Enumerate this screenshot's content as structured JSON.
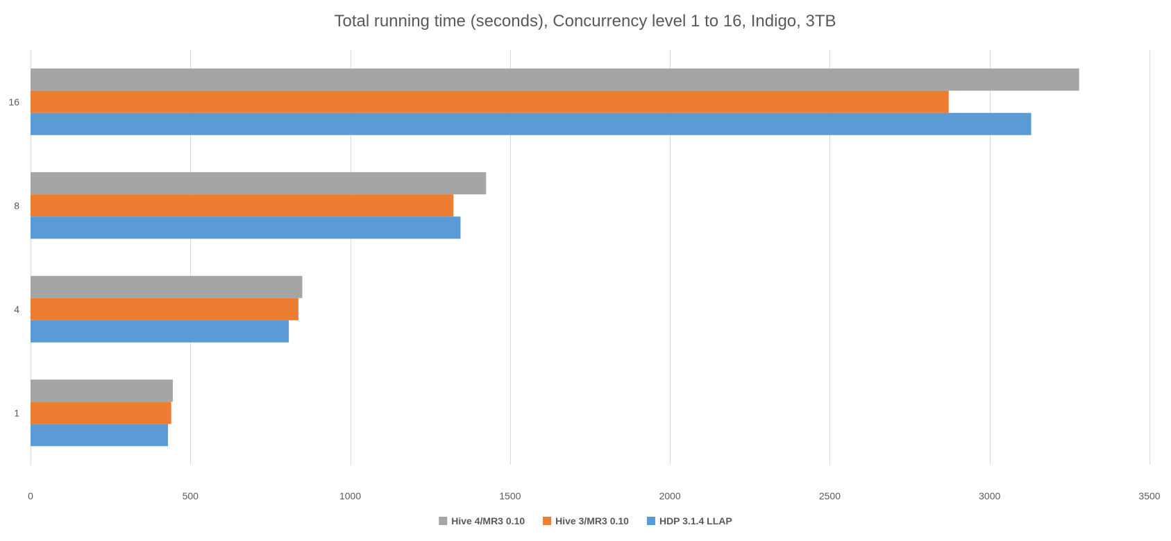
{
  "chart_data": {
    "type": "bar",
    "orientation": "horizontal",
    "title": "Total running time (seconds), Concurrency level 1 to 16, Indigo, 3TB",
    "xlabel": "",
    "ylabel": "",
    "categories": [
      "1",
      "4",
      "8",
      "16"
    ],
    "xlim": [
      0,
      3500
    ],
    "xticks": [
      0,
      500,
      1000,
      1500,
      2000,
      2500,
      3000,
      3500
    ],
    "grid": "vertical",
    "legend_position": "bottom",
    "series": [
      {
        "name": "Hive 4/MR3 0.10",
        "color": "#a5a5a5",
        "values": [
          445,
          850,
          1425,
          3280
        ]
      },
      {
        "name": "Hive 3/MR3 0.10",
        "color": "#ed7d31",
        "values": [
          440,
          838,
          1323,
          2872
        ]
      },
      {
        "name": "HDP 3.1.4 LLAP",
        "color": "#5b9bd5",
        "values": [
          430,
          808,
          1345,
          3130
        ]
      }
    ]
  }
}
